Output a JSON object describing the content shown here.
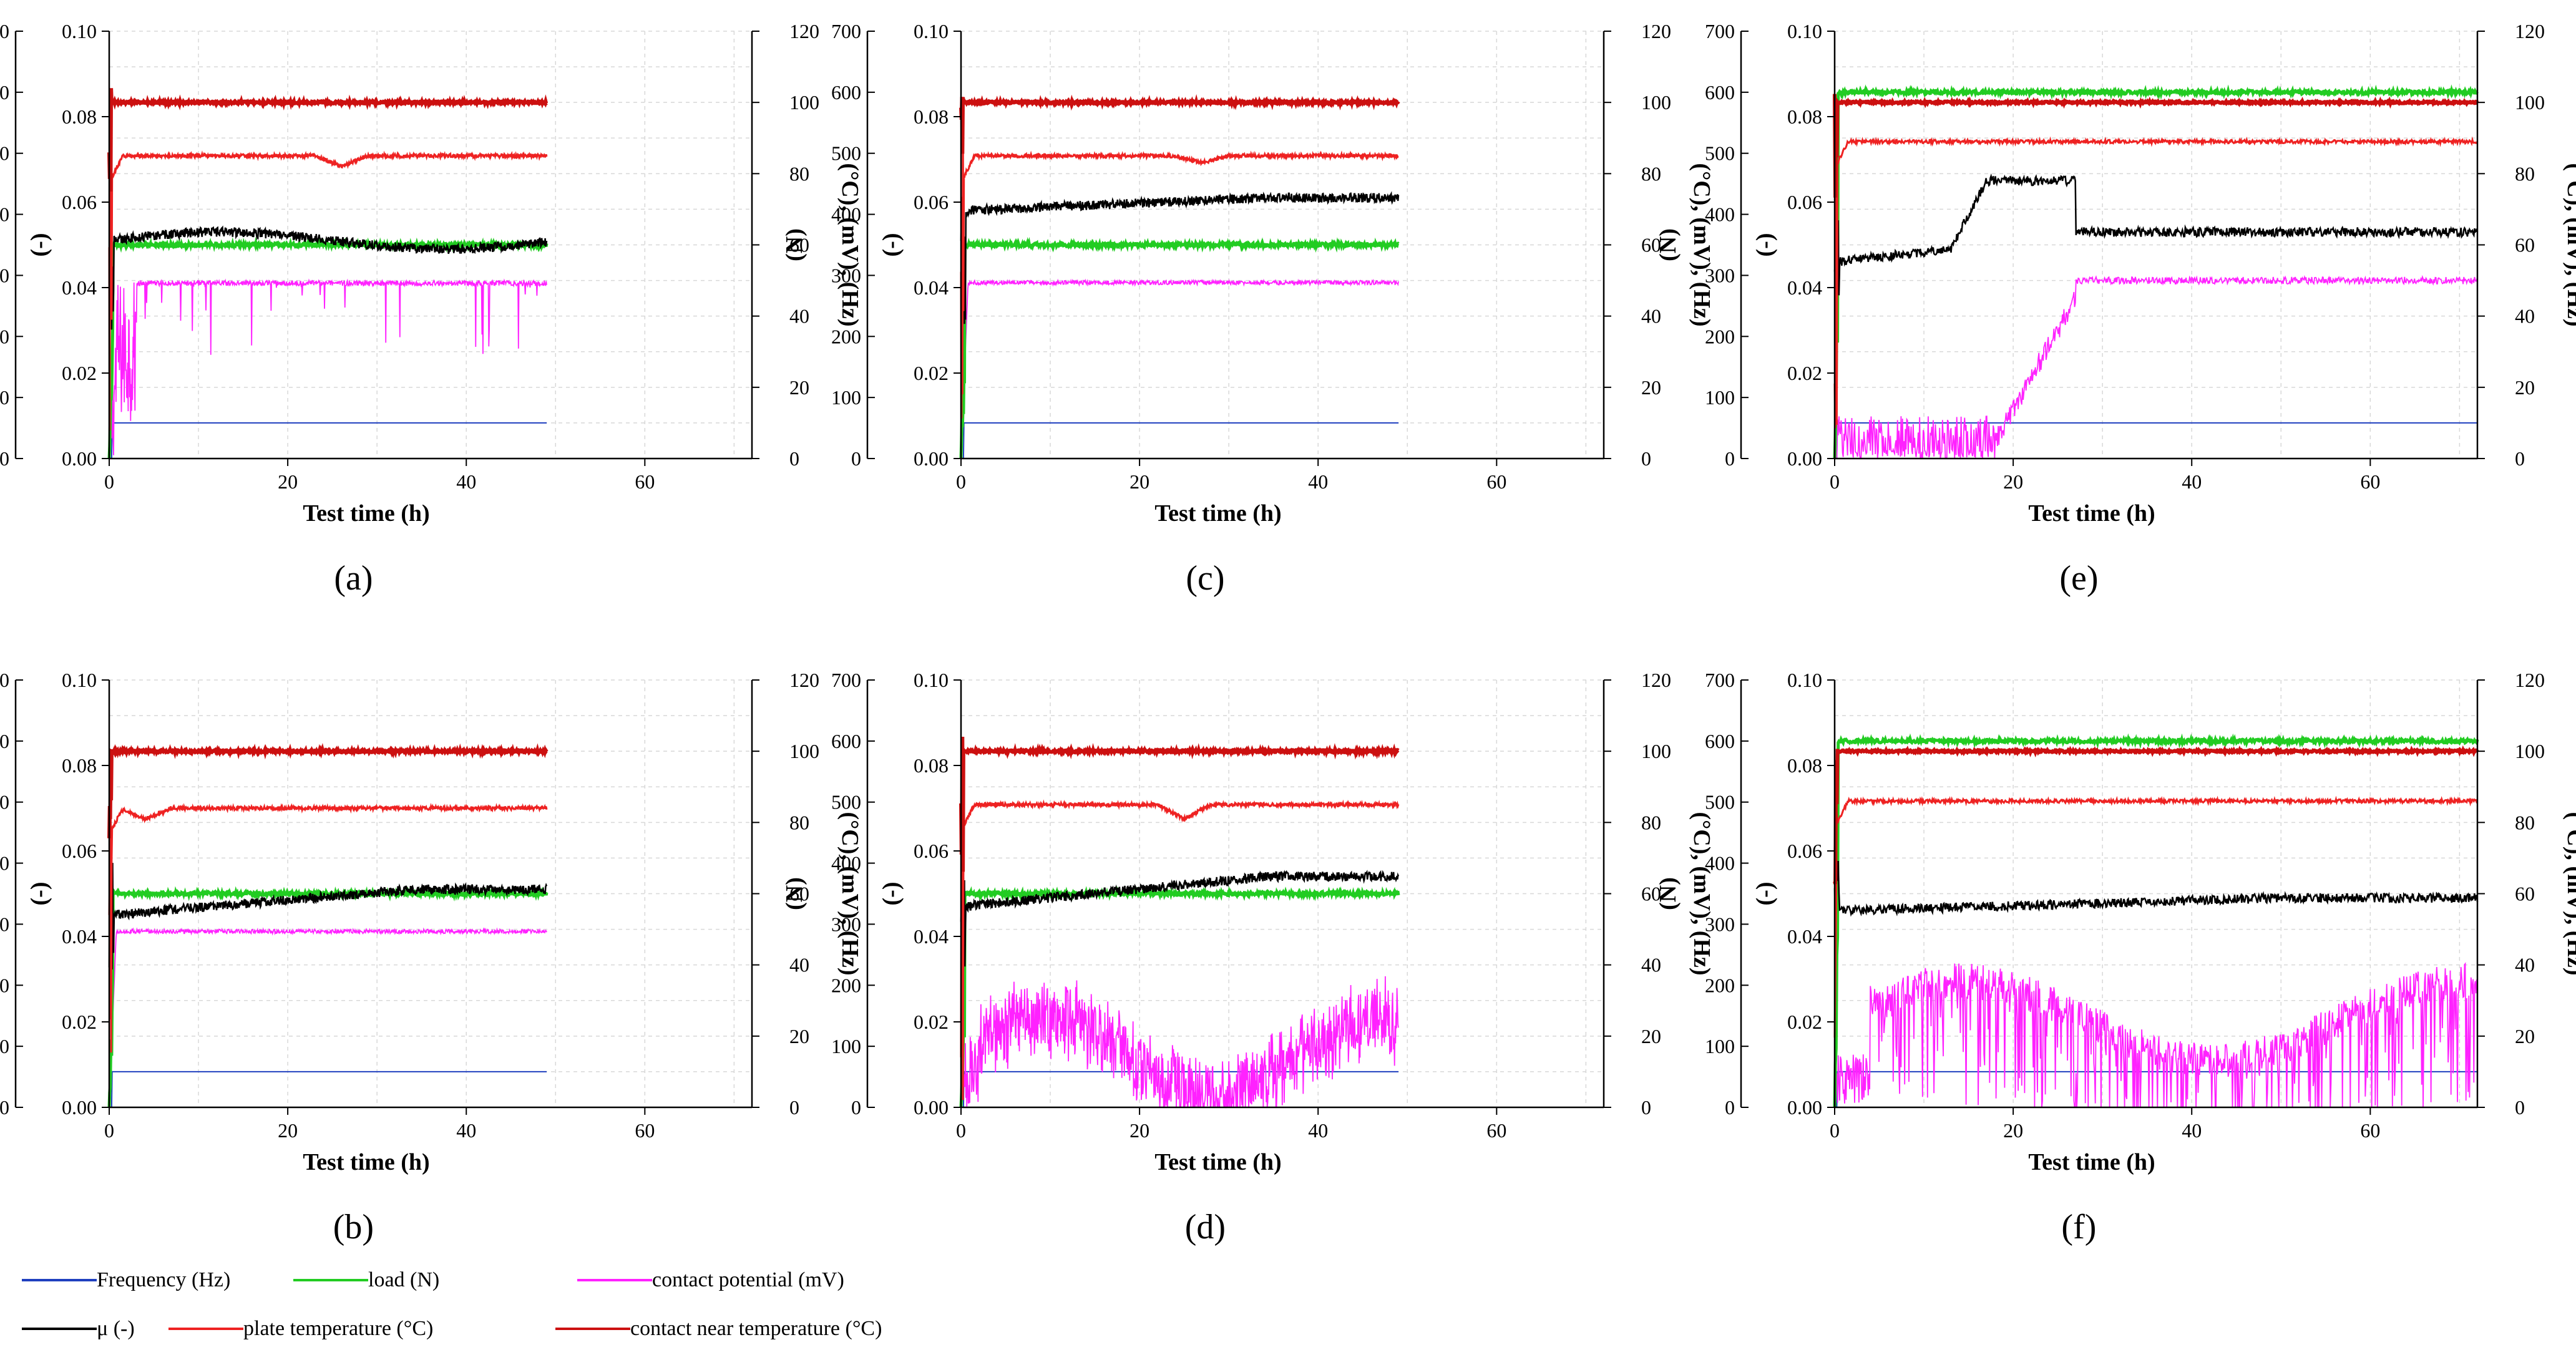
{
  "chart_data": {
    "type": "line",
    "axis_labels": {
      "x": "Test time (h)",
      "y_load": "(N)",
      "y_mu": "(-)",
      "y_right": "(°C), (mV), (Hz)"
    },
    "axes": {
      "x_range": [
        0,
        72
      ],
      "x_ticks": [
        "0",
        "20",
        "40",
        "60"
      ],
      "load_range": [
        0,
        700
      ],
      "load_ticks": [
        "0",
        "100",
        "200",
        "300",
        "400",
        "500",
        "600",
        "700"
      ],
      "mu_range": [
        0,
        0.1
      ],
      "mu_ticks": [
        "0.00",
        "0.02",
        "0.04",
        "0.06",
        "0.08",
        "0.10"
      ],
      "right_range": [
        0,
        120
      ],
      "right_ticks": [
        "0",
        "20",
        "40",
        "60",
        "80",
        "100",
        "120"
      ]
    },
    "legend": [
      {
        "key": "frequency",
        "label": "Frequency (Hz)",
        "color": "#1f3fbf"
      },
      {
        "key": "load",
        "label": "load (N)",
        "color": "#22cc22"
      },
      {
        "key": "potential",
        "label": "contact potential (mV)",
        "color": "#ff22ff"
      },
      {
        "key": "mu",
        "label": "μ (-)",
        "color": "#000000"
      },
      {
        "key": "plate",
        "label": "plate temperature (°C)",
        "color": "#ee2222"
      },
      {
        "key": "contact",
        "label": "contact near temperature (°C)",
        "color": "#cc1010"
      }
    ],
    "panels": [
      {
        "label": "(a)",
        "duration_h": 49,
        "frequency_Hz": 10,
        "load_N": 350,
        "mu_base": 0.051,
        "mu_drift": 0.002,
        "mu_shape": "flat",
        "plate_C": 85,
        "plate_dip": {
          "t": 26,
          "depth": 3
        },
        "contact_C": 100,
        "potential_mV": 50,
        "potential_shape": "spiky-sparse",
        "series": [
          "frequency",
          "load",
          "potential",
          "mu",
          "plate",
          "contact"
        ]
      },
      {
        "label": "(c)",
        "duration_h": 49,
        "frequency_Hz": 10,
        "load_N": 350,
        "mu_base": 0.058,
        "mu_drift": 0.003,
        "mu_shape": "rise",
        "plate_C": 85,
        "plate_dip": {
          "t": 27,
          "depth": 2
        },
        "contact_C": 100,
        "potential_mV": 50,
        "potential_shape": "steady",
        "series": [
          "frequency",
          "load",
          "potential",
          "mu",
          "plate",
          "contact"
        ]
      },
      {
        "label": "(e)",
        "duration_h": 72,
        "frequency_Hz": 10,
        "load_N": 600,
        "mu_base": 0.053,
        "mu_drift": 0.0,
        "mu_shape": "hump",
        "plate_C": 89,
        "plate_dip": null,
        "contact_C": 100,
        "potential_mV": 50,
        "potential_shape": "late-rise",
        "series": [
          "frequency",
          "load",
          "potential",
          "mu",
          "plate",
          "contact"
        ]
      },
      {
        "label": "(b)",
        "duration_h": 49,
        "frequency_Hz": 10,
        "load_N": 350,
        "mu_base": 0.045,
        "mu_drift": 0.006,
        "mu_shape": "rise",
        "plate_C": 84,
        "plate_dip": {
          "t": 4,
          "depth": 3
        },
        "contact_C": 100,
        "potential_mV": 50,
        "potential_shape": "steady",
        "series": [
          "frequency",
          "load",
          "potential",
          "mu",
          "plate",
          "contact"
        ]
      },
      {
        "label": "(d)",
        "duration_h": 49,
        "frequency_Hz": 10,
        "load_N": 350,
        "mu_base": 0.047,
        "mu_drift": 0.007,
        "mu_shape": "rise",
        "plate_C": 85,
        "plate_dip": {
          "t": 25,
          "depth": 4
        },
        "contact_C": 100,
        "potential_mV": 35,
        "potential_shape": "noisy",
        "series": [
          "frequency",
          "load",
          "potential",
          "mu",
          "plate",
          "contact"
        ]
      },
      {
        "label": "(f)",
        "duration_h": 72,
        "frequency_Hz": 10,
        "load_N": 600,
        "mu_base": 0.046,
        "mu_drift": 0.003,
        "mu_shape": "rise",
        "plate_C": 86,
        "plate_dip": null,
        "contact_C": 100,
        "potential_mV": 45,
        "potential_shape": "noisy-heavy",
        "series": [
          "frequency",
          "load",
          "potential",
          "mu",
          "plate",
          "contact"
        ]
      }
    ]
  }
}
